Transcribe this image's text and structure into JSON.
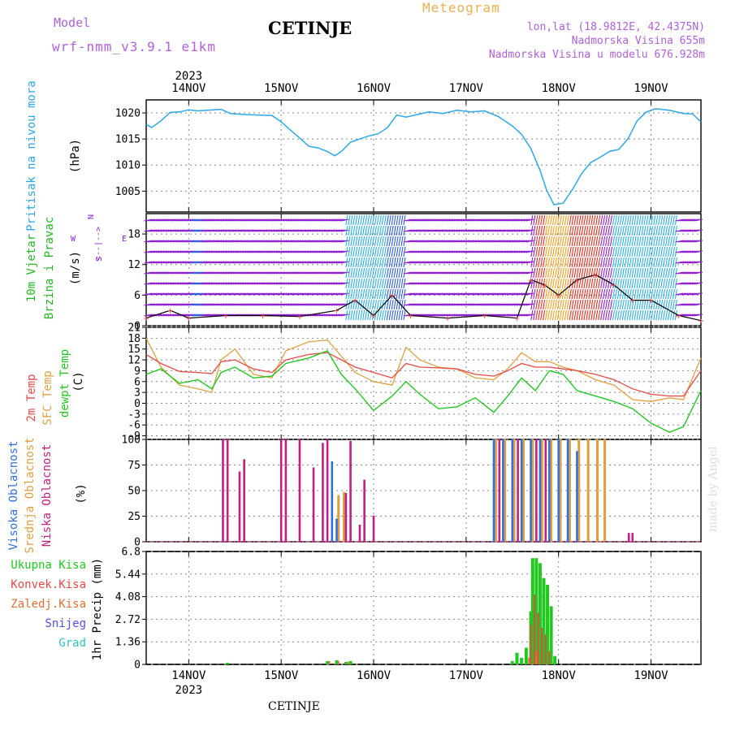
{
  "header": {
    "model_label": "Model",
    "model_name": "wrf-nmm_v3.9.1 e1km",
    "station": "CETINJE",
    "product": "Meteogram",
    "location": "lon,lat (18.9812E, 42.4375N)",
    "altitude": "Nadmorska Visina 655m",
    "model_altitude": "Nadmorska Visina u modelu 676.928m"
  },
  "footer": {
    "station": "CETINJE",
    "signature": "made by Angel"
  },
  "colors": {
    "pressure": "#2aa8e8",
    "temp2m": "#e84848",
    "sfc_temp": "#e0a040",
    "dewpoint": "#20c820",
    "cloud_high": "#3070e0",
    "cloud_mid": "#e0a040",
    "cloud_low": "#c02080",
    "precip_total": "#20c820",
    "precip_conv": "#e84848",
    "precip_frz": "#e07030",
    "precip_snow": "#5050e0",
    "precip_grad": "#30c0c0",
    "wind_label": "#20b820",
    "wind_purple": "#9020d0"
  },
  "chart_data": [
    {
      "type": "line",
      "panel": "pressure",
      "ylabel_colored": "Pritisak na nivou mora",
      "ylabel_unit": "(hPa)",
      "top_axis_year": "2023",
      "x_ticks": [
        "14NOV",
        "15NOV",
        "16NOV",
        "17NOV",
        "18NOV",
        "19NOV"
      ],
      "y_ticks": [
        1005,
        1010,
        1015,
        1020
      ],
      "ylim": [
        1001,
        1022.5
      ],
      "xlim_days": [
        13.54,
        19.54
      ],
      "grid": true,
      "series": [
        {
          "x": [
            13.54,
            13.6,
            13.7,
            13.8,
            13.9,
            14.0,
            14.1,
            14.2,
            14.35,
            14.45,
            14.6,
            14.75,
            14.9,
            15.0,
            15.1,
            15.2,
            15.3,
            15.4,
            15.5,
            15.58,
            15.65,
            15.75,
            15.85,
            15.95,
            16.05,
            16.15,
            16.25,
            16.35,
            16.45,
            16.6,
            16.75,
            16.9,
            17.05,
            17.2,
            17.35,
            17.5,
            17.6,
            17.7,
            17.8,
            17.87,
            17.95,
            18.05,
            18.15,
            18.25,
            18.35,
            18.45,
            18.55,
            18.65,
            18.75,
            18.85,
            18.95,
            19.05,
            19.2,
            19.35,
            19.45,
            19.54
          ],
          "values": [
            1017.8,
            1017.2,
            1018.5,
            1020.1,
            1020.2,
            1020.6,
            1020.4,
            1020.5,
            1020.7,
            1019.9,
            1019.7,
            1019.6,
            1019.5,
            1018.3,
            1016.7,
            1015.2,
            1013.6,
            1013.3,
            1012.6,
            1011.8,
            1012.6,
            1014.4,
            1015.0,
            1015.6,
            1016.0,
            1017.2,
            1019.6,
            1019.2,
            1019.6,
            1020.2,
            1019.9,
            1020.5,
            1020.2,
            1020.4,
            1019.3,
            1017.5,
            1015.9,
            1013.2,
            1009.0,
            1005.2,
            1002.4,
            1002.7,
            1005.3,
            1008.4,
            1010.5,
            1011.5,
            1012.6,
            1013.0,
            1015.0,
            1018.5,
            1020.2,
            1020.8,
            1020.5,
            1019.9,
            1019.8,
            1018.3
          ]
        }
      ]
    },
    {
      "type": "line",
      "panel": "wind",
      "ylabel_colored": [
        "10m Vjetar",
        "Brzina i Pravac"
      ],
      "ylabel_unit": "(m/s)",
      "compass": [
        "N",
        "S",
        "W",
        "E",
        "<--|-->"
      ],
      "y_ticks": [
        0,
        6,
        12,
        18
      ],
      "ylim": [
        0,
        22
      ],
      "note": "dense coloured wind-barb field, colour by speed",
      "series": [
        {
          "name": "speed",
          "x": [
            13.54,
            13.8,
            14.0,
            14.4,
            14.8,
            15.2,
            15.6,
            15.8,
            16.0,
            16.2,
            16.4,
            16.8,
            17.2,
            17.55,
            17.7,
            17.85,
            18.0,
            18.2,
            18.4,
            18.6,
            18.8,
            19.0,
            19.3,
            19.54
          ],
          "values": [
            1.5,
            3,
            1.5,
            2,
            2,
            1.8,
            3,
            5,
            2,
            6,
            2,
            1.5,
            2,
            1.5,
            9,
            8,
            6,
            9,
            10,
            8,
            5,
            5,
            2,
            1
          ]
        }
      ]
    },
    {
      "type": "line",
      "panel": "temperature",
      "ylabel_colored": [
        "2m Temp",
        "SFC Temp",
        "dewpt Temp"
      ],
      "ylabel_unit": "(C)",
      "y_ticks": [
        -9,
        -6,
        -3,
        0,
        3,
        6,
        9,
        12,
        15,
        18,
        21
      ],
      "ylim": [
        -10,
        21
      ],
      "series": [
        {
          "name": "2m Temp",
          "x": [
            13.54,
            13.7,
            13.9,
            14.1,
            14.25,
            14.35,
            14.5,
            14.7,
            14.9,
            15.05,
            15.3,
            15.5,
            15.65,
            15.8,
            16.0,
            16.2,
            16.35,
            16.5,
            16.7,
            16.9,
            17.1,
            17.3,
            17.45,
            17.6,
            17.75,
            17.9,
            18.05,
            18.2,
            18.4,
            18.6,
            18.8,
            19.0,
            19.2,
            19.35,
            19.54
          ],
          "values": [
            13.5,
            11.0,
            8.8,
            8.5,
            8.2,
            11.5,
            12.0,
            9.5,
            8.5,
            12.0,
            13.5,
            14.0,
            12.0,
            10.0,
            8.5,
            7.0,
            11.0,
            10.0,
            9.8,
            9.5,
            8.0,
            7.5,
            9.0,
            11.0,
            10.0,
            10.0,
            9.5,
            9.0,
            8.0,
            6.5,
            4.0,
            2.5,
            2.0,
            2.0,
            9.0
          ]
        },
        {
          "name": "SFC Temp",
          "x": [
            13.54,
            13.7,
            13.9,
            14.1,
            14.25,
            14.35,
            14.5,
            14.7,
            14.9,
            15.05,
            15.3,
            15.5,
            15.65,
            15.8,
            16.0,
            16.2,
            16.35,
            16.5,
            16.7,
            16.9,
            17.1,
            17.3,
            17.45,
            17.6,
            17.75,
            17.9,
            18.05,
            18.2,
            18.4,
            18.6,
            18.8,
            19.0,
            19.2,
            19.35,
            19.54
          ],
          "values": [
            18.0,
            10.0,
            5.0,
            4.0,
            3.0,
            12.0,
            15.0,
            8.0,
            7.0,
            14.5,
            17.0,
            17.5,
            13.0,
            8.5,
            6.0,
            5.0,
            15.5,
            12.0,
            10.0,
            9.5,
            7.0,
            6.5,
            9.5,
            14.0,
            11.5,
            11.5,
            10.0,
            9.0,
            6.5,
            5.0,
            1.0,
            0.5,
            1.5,
            1.0,
            12.5
          ]
        },
        {
          "name": "dewpt Temp",
          "x": [
            13.54,
            13.7,
            13.9,
            14.1,
            14.25,
            14.35,
            14.5,
            14.7,
            14.9,
            15.05,
            15.3,
            15.5,
            15.65,
            15.8,
            16.0,
            16.2,
            16.35,
            16.5,
            16.7,
            16.9,
            17.1,
            17.3,
            17.45,
            17.6,
            17.75,
            17.9,
            18.05,
            18.2,
            18.4,
            18.6,
            18.8,
            19.0,
            19.2,
            19.35,
            19.54
          ],
          "values": [
            8.0,
            9.5,
            5.5,
            6.5,
            4.0,
            8.5,
            10.0,
            7.0,
            7.5,
            11.0,
            12.5,
            14.5,
            8.0,
            4.0,
            -2.0,
            2.0,
            6.0,
            2.5,
            -1.5,
            -1.0,
            1.5,
            -2.5,
            2.0,
            7.0,
            3.5,
            9.0,
            8.0,
            3.5,
            2.0,
            0.5,
            -1.5,
            -5.5,
            -8.0,
            -6.5,
            3.5
          ]
        }
      ]
    },
    {
      "type": "bar",
      "panel": "cloud",
      "ylabel_colored": [
        "Visoka Oblacnost",
        "Srednja Oblacnost",
        "Niska Oblacnost"
      ],
      "ylabel_unit": "(%)",
      "y_ticks": [
        0,
        25,
        50,
        75,
        100
      ],
      "ylim": [
        0,
        100
      ],
      "series": [
        {
          "name": "Visoka Oblacnost",
          "x": [
            15.55,
            15.6,
            17.3,
            17.4,
            17.5,
            17.6,
            17.7,
            17.8,
            17.9,
            18.0,
            18.1,
            18.2
          ],
          "values": [
            78,
            22,
            100,
            100,
            100,
            100,
            100,
            100,
            100,
            100,
            100,
            88
          ]
        },
        {
          "name": "Srednja Oblacnost",
          "x": [
            15.62,
            15.68,
            17.32,
            17.42,
            17.52,
            17.62,
            17.72,
            17.82,
            17.92,
            18.02,
            18.12,
            18.22,
            18.32,
            18.42,
            18.5
          ],
          "values": [
            45,
            48,
            100,
            100,
            100,
            100,
            100,
            100,
            100,
            100,
            100,
            100,
            100,
            100,
            100
          ]
        },
        {
          "name": "Niska Oblacnost",
          "x": [
            14.37,
            14.42,
            14.55,
            14.6,
            15.0,
            15.05,
            15.2,
            15.35,
            15.45,
            15.5,
            15.7,
            15.75,
            15.85,
            15.9,
            16.0,
            17.36,
            17.56,
            17.76,
            17.86,
            18.76,
            18.8
          ],
          "values": [
            100,
            100,
            68,
            80,
            100,
            100,
            100,
            72,
            96,
            100,
            47,
            98,
            16,
            60,
            25,
            100,
            100,
            100,
            100,
            8,
            8
          ]
        }
      ]
    },
    {
      "type": "bar",
      "panel": "precip",
      "ylabel_colored": [
        "Ukupna Kisa",
        "Konvek.Kisa",
        "Zaledj.Kisa",
        "Snijeg",
        "Grad"
      ],
      "ylabel_unit": "1hr Precip (mm)",
      "bottom_axis_year": "2023",
      "y_ticks": [
        0,
        1.36,
        2.72,
        4.08,
        5.44,
        6.8
      ],
      "ylim": [
        0,
        6.8
      ],
      "series": [
        {
          "name": "Ukupna Kisa",
          "x": [
            14.42,
            15.5,
            15.6,
            15.7,
            15.75,
            17.5,
            17.55,
            17.6,
            17.65,
            17.7,
            17.72,
            17.76,
            17.8,
            17.84,
            17.88,
            17.92,
            17.96
          ],
          "values": [
            0.1,
            0.2,
            0.25,
            0.15,
            0.2,
            0.2,
            0.7,
            0.4,
            1.0,
            3.2,
            6.4,
            6.4,
            6.1,
            5.2,
            4.8,
            3.5,
            0.5
          ]
        },
        {
          "name": "Konvek.Kisa",
          "x": [
            17.7,
            17.74,
            17.78,
            17.82,
            17.86,
            17.9
          ],
          "values": [
            2.4,
            4.2,
            3.1,
            2.2,
            1.8,
            0.8
          ]
        },
        {
          "name": "Zaledj.Kisa",
          "x": [
            15.52,
            15.62,
            15.72,
            17.68,
            17.76
          ],
          "values": [
            0.2,
            0.2,
            0.15,
            0.4,
            0.8
          ]
        },
        {
          "name": "Snijeg",
          "x": [],
          "values": []
        },
        {
          "name": "Grad",
          "x": [],
          "values": []
        }
      ]
    }
  ]
}
